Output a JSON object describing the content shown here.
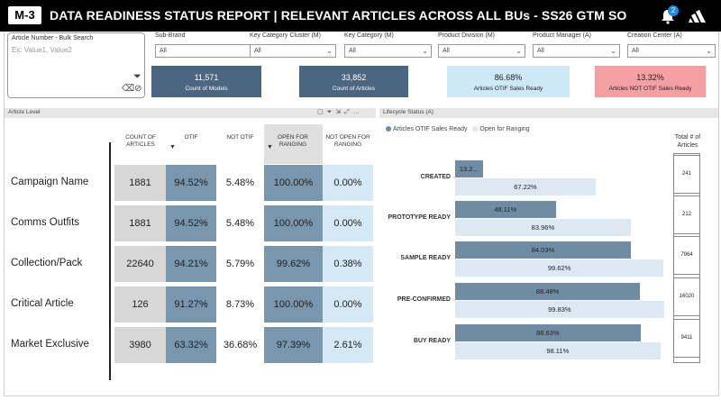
{
  "header": {
    "logo": "M-3",
    "title": "DATA READINESS STATUS REPORT | RELEVANT ARTICLES ACROSS ALL BUs - SS26 GTM SO",
    "notification_count": "2"
  },
  "filters": {
    "article_number": {
      "label": "Article Number - Bulk Search",
      "placeholder": "Ex: Value1, Value2"
    },
    "slicers": [
      {
        "label": "Sub-Brand",
        "value": "All"
      },
      {
        "label": "Key Category Cluster (M)",
        "value": "All"
      },
      {
        "label": "Key Category (M)",
        "value": "All"
      },
      {
        "label": "Product Division (M)",
        "value": "All"
      },
      {
        "label": "Product Manager (A)",
        "value": "All"
      },
      {
        "label": "Creation Center (A)",
        "value": "All"
      }
    ]
  },
  "kpis": [
    {
      "value": "11,571",
      "label": "Count of Models",
      "color": "#4a6680"
    },
    {
      "value": "33,852",
      "label": "Count of Articles",
      "color": "#4a6680"
    },
    {
      "value": "86.68%",
      "label": "Articles OTIF Sales Ready",
      "color": "#cde8f7"
    },
    {
      "value": "13.32%",
      "label": "Articles NOT OTIF Sales Ready",
      "color": "#f4a0a2"
    }
  ],
  "article_level": {
    "panel_title": "Article Level",
    "columns": [
      "COUNT OF ARTICLES",
      "OTIF",
      "NOT OTIF",
      "OPEN FOR RANGING",
      "NOT OPEN FOR RANGING"
    ],
    "rows": [
      {
        "label": "Campaign Name",
        "values": [
          "1881",
          "94.52%",
          "5.48%",
          "100.00%",
          "0.00%"
        ]
      },
      {
        "label": "Comms Outfits",
        "values": [
          "1881",
          "94.52%",
          "5.48%",
          "100.00%",
          "0.00%"
        ]
      },
      {
        "label": "Collection/Pack",
        "values": [
          "22640",
          "94.21%",
          "5.79%",
          "99.62%",
          "0.38%"
        ]
      },
      {
        "label": "Critical Article",
        "values": [
          "126",
          "91.27%",
          "8.73%",
          "100.00%",
          "0.00%"
        ]
      },
      {
        "label": "Market Exclusive",
        "values": [
          "3980",
          "63.32%",
          "36.68%",
          "97.39%",
          "2.61%"
        ]
      }
    ]
  },
  "lifecycle": {
    "panel_title": "Lifecycle Status (A)",
    "legend": [
      {
        "name": "Articles OTIF Sales Ready",
        "color": "#6f8ca4"
      },
      {
        "name": "Open for Ranging",
        "color": "#dce9f3"
      }
    ],
    "total_header": "Total # of Articles"
  },
  "chart_data": {
    "type": "bar",
    "orientation": "horizontal",
    "title": "Lifecycle Status (A)",
    "categories": [
      "CREATED",
      "PROTOTYPE READY",
      "SAMPLE READY",
      "PRE-CONFIRMED",
      "BUY READY"
    ],
    "series": [
      {
        "name": "Articles OTIF Sales Ready",
        "values": [
          13.2,
          48.11,
          84.03,
          88.48,
          88.63
        ],
        "labels": [
          "13.2...",
          "48.11%",
          "84.03%",
          "88.48%",
          "88.63%"
        ]
      },
      {
        "name": "Open for Ranging",
        "values": [
          67.22,
          83.96,
          99.62,
          99.83,
          98.11
        ],
        "labels": [
          "67.22%",
          "83.96%",
          "99.62%",
          "99.83%",
          "98.11%"
        ]
      }
    ],
    "totals": [
      "241",
      "212",
      "7964",
      "16020",
      "9411"
    ],
    "xlim": [
      0,
      100
    ],
    "legend_position": "top-left"
  }
}
